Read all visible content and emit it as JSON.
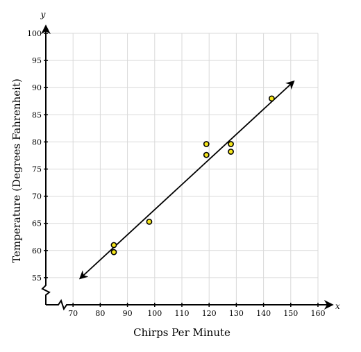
{
  "chart_data": {
    "type": "scatter",
    "xlabel": "Chirps Per Minute",
    "ylabel": "Temperature (Degrees Fahrenheit)",
    "x_axis_letter": "x",
    "y_axis_letter": "y",
    "xlim": [
      60,
      160
    ],
    "ylim": [
      50,
      100
    ],
    "x_ticks": [
      70,
      80,
      90,
      100,
      110,
      120,
      130,
      140,
      150,
      160
    ],
    "y_ticks": [
      55,
      60,
      65,
      70,
      75,
      80,
      85,
      90,
      95,
      100
    ],
    "grid": true,
    "axis_breaks": true,
    "points": [
      {
        "x": 85,
        "y": 61.0
      },
      {
        "x": 85,
        "y": 59.7
      },
      {
        "x": 98,
        "y": 65.3
      },
      {
        "x": 119,
        "y": 79.6
      },
      {
        "x": 119,
        "y": 77.6
      },
      {
        "x": 128,
        "y": 79.6
      },
      {
        "x": 128,
        "y": 78.2
      },
      {
        "x": 143,
        "y": 88.0
      }
    ],
    "trend_line": {
      "start": {
        "x": 72.7,
        "y": 54.9
      },
      "end": {
        "x": 151.0,
        "y": 91.1
      },
      "arrows": "both"
    },
    "colors": {
      "point_fill": "#f5e51b",
      "point_stroke": "#000000",
      "line": "#000000",
      "grid": "#d9d9d9"
    }
  }
}
